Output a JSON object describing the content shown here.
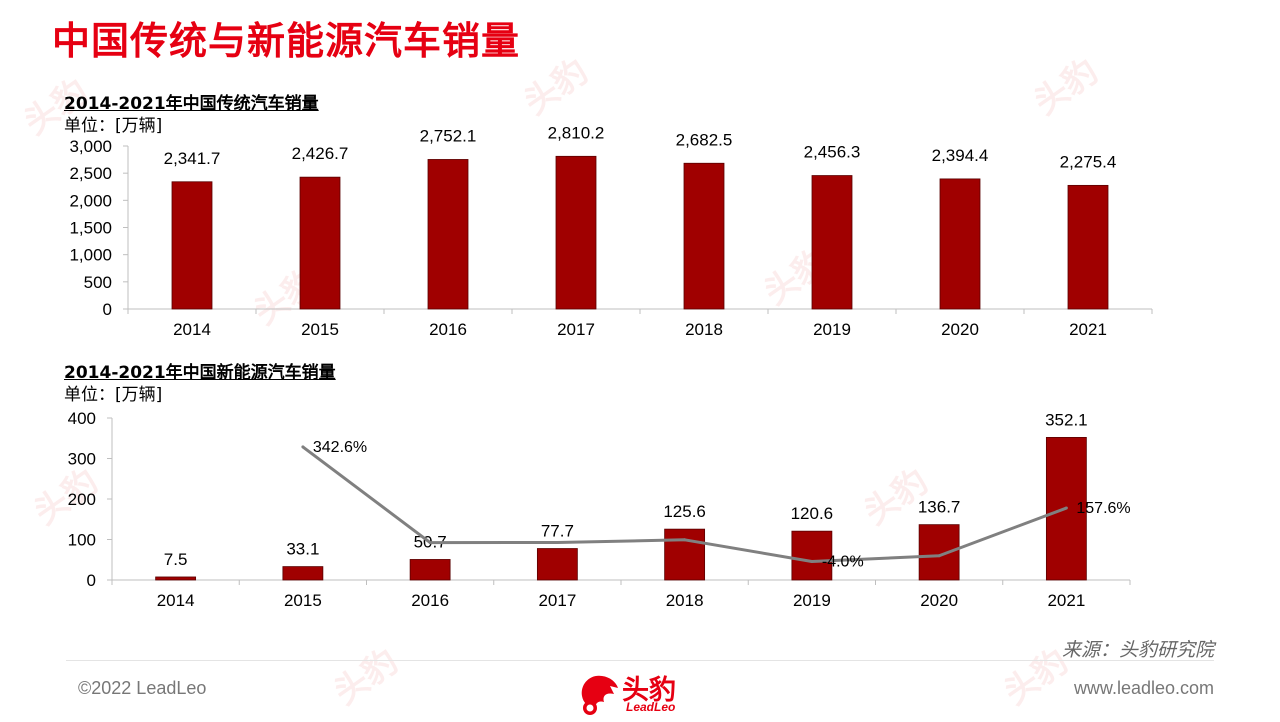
{
  "title": "中国传统与新能源汽车销量",
  "colors": {
    "title_red": "#e60012",
    "bar": "#a00000",
    "line": "#808080"
  },
  "charts": {
    "traditional": {
      "title": "2014-2021年中国传统汽车销量",
      "unit": "单位：[万辆]"
    },
    "nev": {
      "title": "2014-2021年中国新能源汽车销量",
      "unit": "单位：[万辆]"
    }
  },
  "chart_data": [
    {
      "type": "bar",
      "title": "2014-2021年中国传统汽车销量",
      "categories": [
        "2014",
        "2015",
        "2016",
        "2017",
        "2018",
        "2019",
        "2020",
        "2021"
      ],
      "values": [
        2341.7,
        2426.7,
        2752.1,
        2810.2,
        2682.5,
        2456.3,
        2394.4,
        2275.4
      ],
      "value_labels": [
        "2,341.7",
        "2,426.7",
        "2,752.1",
        "2,810.2",
        "2,682.5",
        "2,456.3",
        "2,394.4",
        "2,275.4"
      ],
      "ylim": [
        0,
        3000
      ],
      "yticks": [
        0,
        500,
        1000,
        1500,
        2000,
        2500,
        3000
      ],
      "ytick_labels": [
        "0",
        "500",
        "1,000",
        "1,500",
        "2,000",
        "2,500",
        "3,000"
      ],
      "grid": false
    },
    {
      "type": "bar",
      "title": "2014-2021年中国新能源汽车销量",
      "categories": [
        "2014",
        "2015",
        "2016",
        "2017",
        "2018",
        "2019",
        "2020",
        "2021"
      ],
      "values": [
        7.5,
        33.1,
        50.7,
        77.7,
        125.6,
        120.6,
        136.7,
        352.1
      ],
      "value_labels": [
        "7.5",
        "33.1",
        "50.7",
        "77.7",
        "125.6",
        "120.6",
        "136.7",
        "352.1"
      ],
      "ylim": [
        0,
        400
      ],
      "yticks": [
        0,
        100,
        200,
        300,
        400
      ],
      "ytick_labels": [
        "0",
        "100",
        "200",
        "300",
        "400"
      ],
      "growth_line": {
        "categories": [
          "2015",
          "2016",
          "2017",
          "2018",
          "2019",
          "2020",
          "2021"
        ],
        "values_pct": [
          342.6,
          53.2,
          53.3,
          61.6,
          -4.0,
          13.3,
          157.6
        ],
        "printed_labels": [
          {
            "category": "2015",
            "label": "342.6%"
          },
          {
            "category": "2019",
            "label": "-4.0%"
          },
          {
            "category": "2021",
            "label": "157.6%"
          }
        ]
      },
      "grid": false
    }
  ],
  "source": "来源：头豹研究院",
  "footer": {
    "copyright": "©2022 LeadLeo",
    "website": "www.leadleo.com",
    "logo_cn": "头豹",
    "logo_en": "LeadLeo"
  },
  "watermark_text": "头豹"
}
